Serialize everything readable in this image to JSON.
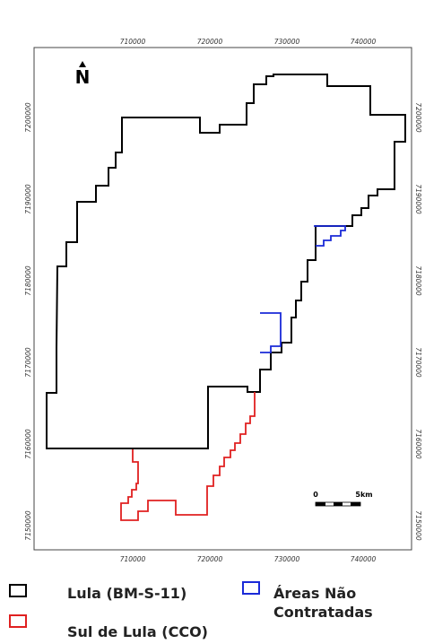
{
  "map": {
    "north_label": "N",
    "x_ticks": [
      "710000",
      "720000",
      "730000",
      "740000"
    ],
    "y_ticks": [
      "7200000",
      "7190000",
      "7180000",
      "7170000",
      "7160000",
      "7150000"
    ],
    "scale_bar": {
      "start_label": "0",
      "end_label": "5km"
    },
    "boundaries": [
      {
        "name": "Lula (BM-S-11)",
        "color": "#000000"
      },
      {
        "name": "Sul de Lula (CCO)",
        "color": "#e02020"
      },
      {
        "name": "Áreas Não Contratadas",
        "color": "#1a2ad8"
      }
    ]
  },
  "legend": {
    "lula_label": "Lula (BM-S-11)",
    "sul_label": "Sul de Lula (CCO)",
    "areas_label_line1": "Áreas Não",
    "areas_label_line2": "Contratadas",
    "lula_color": "#000000",
    "sul_color": "#e02020",
    "areas_color": "#1a2ad8"
  }
}
